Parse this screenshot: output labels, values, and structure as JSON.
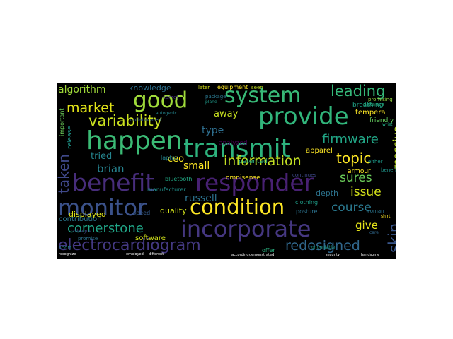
{
  "background": "#000000",
  "colormap": "viridis",
  "words": [
    {
      "text": "transmit",
      "color": "#2db27d"
    },
    {
      "text": "benefit",
      "color": "#472d7b"
    },
    {
      "text": "responder",
      "color": "#482173"
    },
    {
      "text": "provide",
      "color": "#31b57b"
    },
    {
      "text": "happen",
      "color": "#3bbb75"
    },
    {
      "text": "incorporate",
      "color": "#453781"
    },
    {
      "text": "condition",
      "color": "#fde725"
    },
    {
      "text": "system",
      "color": "#38b977"
    },
    {
      "text": "good",
      "color": "#9fda3a"
    },
    {
      "text": "monitor",
      "color": "#3b528b"
    },
    {
      "text": "electrocardiogram",
      "color": "#443983"
    },
    {
      "text": "variability",
      "color": "#cae11f"
    },
    {
      "text": "leading",
      "color": "#35b779"
    },
    {
      "text": "firmware",
      "color": "#21a585"
    },
    {
      "text": "information",
      "color": "#c2df23"
    },
    {
      "text": "topic",
      "color": "#fde725"
    },
    {
      "text": "market",
      "color": "#e2e418"
    },
    {
      "text": "cornerstone",
      "color": "#20a486"
    },
    {
      "text": "redesigned",
      "color": "#31688e"
    },
    {
      "text": "algorithm",
      "color": "#a0da39"
    },
    {
      "text": "taken",
      "color": "#3f4889"
    },
    {
      "text": "course",
      "color": "#2a788e"
    },
    {
      "text": "sures",
      "color": "#6ccd5a"
    },
    {
      "text": "issue",
      "color": "#d5e21a"
    },
    {
      "text": "massive",
      "color": "#bddf26"
    },
    {
      "text": "skin",
      "color": "#39568c"
    },
    {
      "text": "russell",
      "color": "#2c728e"
    },
    {
      "text": "brian",
      "color": "#26828e"
    },
    {
      "text": "give",
      "color": "#e5e419"
    },
    {
      "text": "small",
      "color": "#fde725"
    },
    {
      "text": "type",
      "color": "#2e6e8e"
    },
    {
      "text": "tried",
      "color": "#25848e"
    },
    {
      "text": "ceo",
      "color": "#f6e620"
    },
    {
      "text": "away",
      "color": "#c8e020"
    },
    {
      "text": "knowledge",
      "color": "#2d708e"
    },
    {
      "text": "contribution",
      "color": "#2a778e"
    },
    {
      "text": "displayed",
      "color": "#dde318"
    },
    {
      "text": "quality",
      "color": "#d2e21b"
    },
    {
      "text": "software",
      "color": "#d0e11c"
    },
    {
      "text": "depth",
      "color": "#2c738e"
    },
    {
      "text": "apparel",
      "color": "#fde725"
    },
    {
      "text": "armour",
      "color": "#fde725"
    },
    {
      "text": "patented",
      "color": "#2db27d"
    },
    {
      "text": "tempera",
      "color": "#fde725"
    },
    {
      "text": "breathing",
      "color": "#20a386"
    },
    {
      "text": "friendly",
      "color": "#65cb5e"
    },
    {
      "text": "analyzed",
      "color": "#440154"
    },
    {
      "text": "omnisense",
      "color": "#fde725"
    },
    {
      "text": "equipment",
      "color": "#fde725"
    },
    {
      "text": "laptop",
      "color": "#25848e"
    },
    {
      "text": "bluetooth",
      "color": "#22a884"
    },
    {
      "text": "manufacturer",
      "color": "#21918c"
    },
    {
      "text": "posture",
      "color": "#2c728e"
    },
    {
      "text": "clothing",
      "color": "#1f9e89"
    },
    {
      "text": "speed",
      "color": "#365c8d"
    },
    {
      "text": "important",
      "color": "#6ccd5a"
    },
    {
      "text": "release",
      "color": "#1f988b"
    },
    {
      "text": "collaborated",
      "color": "#355f8d"
    },
    {
      "text": "later",
      "color": "#d8e219"
    },
    {
      "text": "package",
      "color": "#2a788e"
    },
    {
      "text": "seen",
      "color": "#c2df23"
    },
    {
      "text": "promising",
      "color": "#95d840"
    },
    {
      "text": "distance",
      "color": "#25ac82"
    },
    {
      "text": "woman",
      "color": "#2b748e"
    },
    {
      "text": "either",
      "color": "#1e9b8a"
    },
    {
      "text": "benefited",
      "color": "#1f958b"
    },
    {
      "text": "continues",
      "color": "#3e4a89"
    },
    {
      "text": "comet",
      "color": "#46327e"
    },
    {
      "text": "offer",
      "color": "#2ab07f"
    },
    {
      "text": "undeniable",
      "color": "#1f9e89"
    },
    {
      "text": "sport",
      "color": "#26828e"
    },
    {
      "text": "promise",
      "color": "#2c728e"
    },
    {
      "text": "colleague",
      "color": "#3e4989"
    },
    {
      "text": "autogenic",
      "color": "#24868e"
    },
    {
      "text": "wrist",
      "color": "#22a884"
    },
    {
      "text": "shirt",
      "color": "#fde725"
    },
    {
      "text": "care",
      "color": "#31688e"
    },
    {
      "text": "plane",
      "color": "#1f9a8a"
    },
    {
      "text": "recognize",
      "color": "#ffffff"
    },
    {
      "text": "employed",
      "color": "#ffffff"
    },
    {
      "text": "different",
      "color": "#ffffff"
    },
    {
      "text": "according",
      "color": "#ffffff"
    },
    {
      "text": "demonstrated",
      "color": "#ffffff"
    },
    {
      "text": "security",
      "color": "#ffffff"
    },
    {
      "text": "handsome",
      "color": "#ffffff"
    }
  ]
}
